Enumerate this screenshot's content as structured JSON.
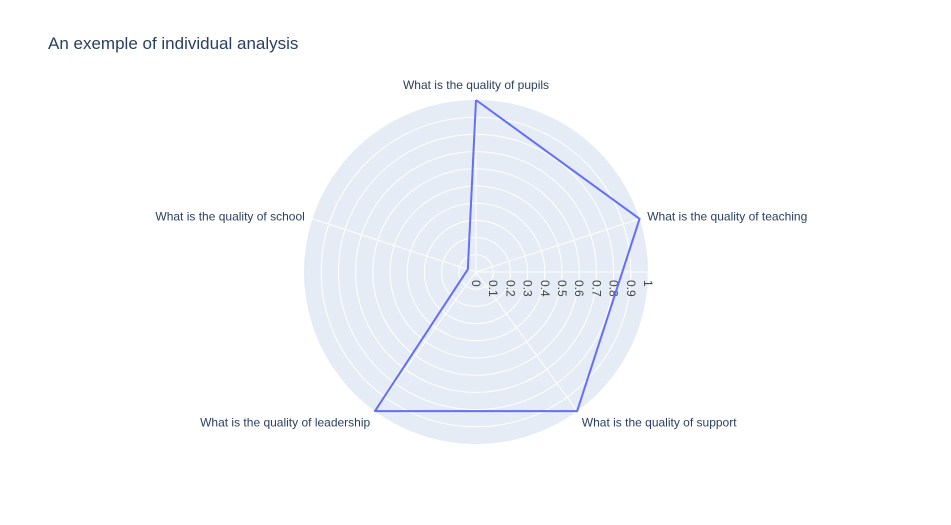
{
  "chart_data": {
    "type": "radar",
    "title": "An exemple of individual analysis",
    "categories": [
      "What is the quality of pupils",
      "What is the quality of teaching",
      "What is the quality of support",
      "What is the quality of leadership",
      "What is the quality of school"
    ],
    "series": [
      {
        "values": [
          1,
          1,
          1,
          1,
          0.05
        ],
        "color": "#636efa"
      }
    ],
    "radial_range": [
      0,
      1
    ],
    "radial_ticks": [
      "0",
      "0.1",
      "0.2",
      "0.3",
      "0.4",
      "0.5",
      "0.6",
      "0.7",
      "0.8",
      "0.9",
      "1"
    ],
    "polar_bgcolor": "#e5ecf6",
    "grid": true
  }
}
